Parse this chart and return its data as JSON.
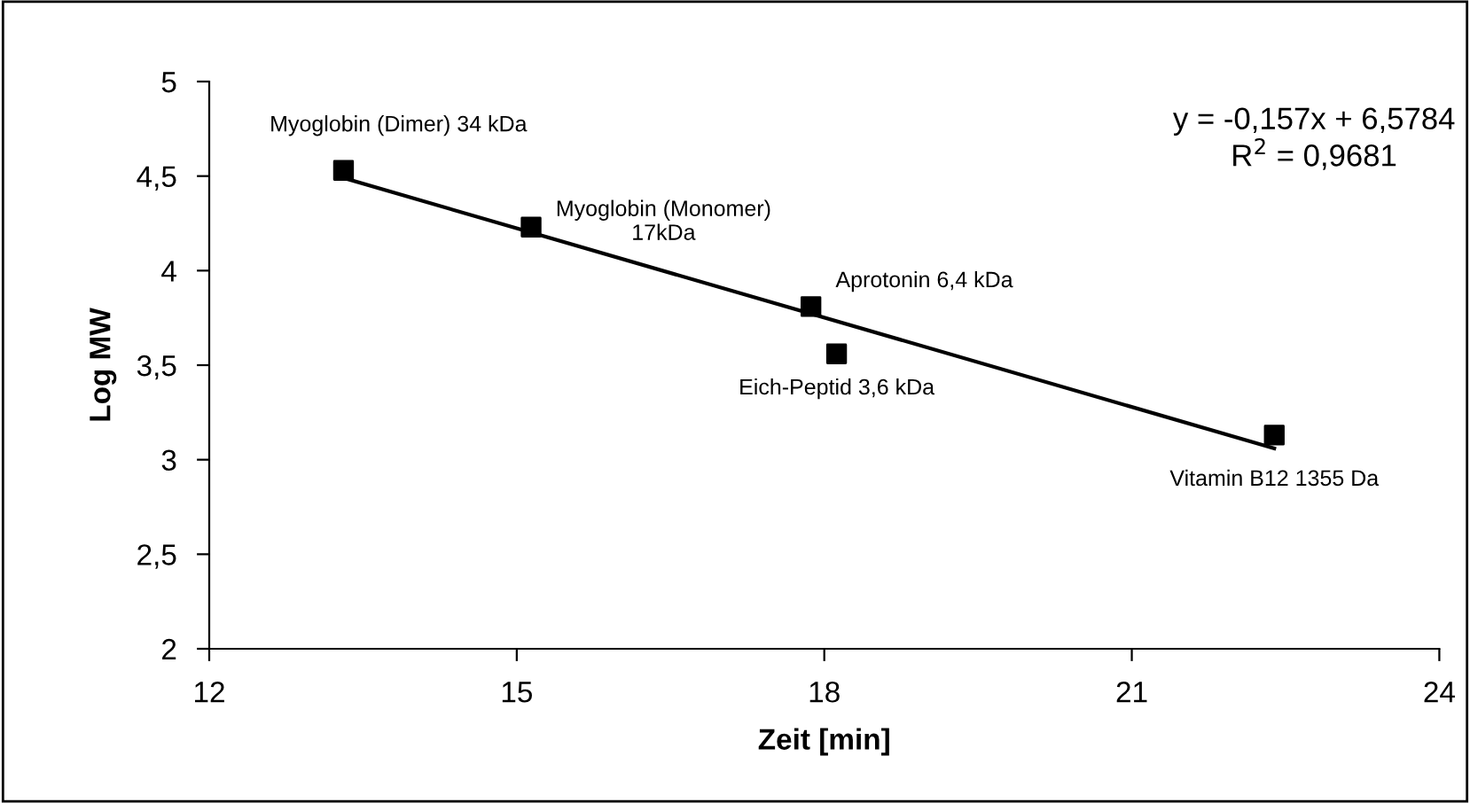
{
  "chart_data": {
    "type": "scatter",
    "xlabel": "Zeit [min]",
    "ylabel": "Log MW",
    "xlim": [
      12,
      24
    ],
    "xticks": [
      12,
      15,
      18,
      21,
      24
    ],
    "ylim": [
      2,
      5
    ],
    "yticks": [
      {
        "value": 2,
        "label": "2"
      },
      {
        "value": 2.5,
        "label": "2,5"
      },
      {
        "value": 3,
        "label": "3"
      },
      {
        "value": 3.5,
        "label": "3,5"
      },
      {
        "value": 4,
        "label": "4"
      },
      {
        "value": 4.5,
        "label": "4,5"
      },
      {
        "value": 5,
        "label": "5"
      }
    ],
    "grid": false,
    "legend": false,
    "series": [
      {
        "color": "#000000",
        "marker": "square",
        "x": [
          13.31,
          15.14,
          17.87,
          18.12,
          22.39
        ],
        "values": [
          4.53,
          4.23,
          3.81,
          3.56,
          3.13
        ]
      },
      {
        "type": "line",
        "color": "#000000",
        "line_style": "solid",
        "marker": "none",
        "x": [
          13.31,
          22.39
        ],
        "values": [
          4.49,
          3.06
        ]
      }
    ],
    "annotations": [
      {
        "text": "Myoglobin (Dimer) 34 kDa",
        "x": 13.31,
        "y": 4.53
      },
      {
        "text": "Myoglobin (Monomer)\n17kDa",
        "x": 15.14,
        "y": 4.23
      },
      {
        "text": "Aprotonin 6,4 kDa",
        "x": 17.87,
        "y": 3.81
      },
      {
        "text": "Eich-Peptid 3,6 kDa",
        "x": 18.12,
        "y": 3.56
      },
      {
        "text": "Vitamin B12 1355 Da",
        "x": 22.39,
        "y": 3.13
      },
      "y = -0,157x + 6,5784\nR$^{2}$ = 0,9681"
    ]
  }
}
